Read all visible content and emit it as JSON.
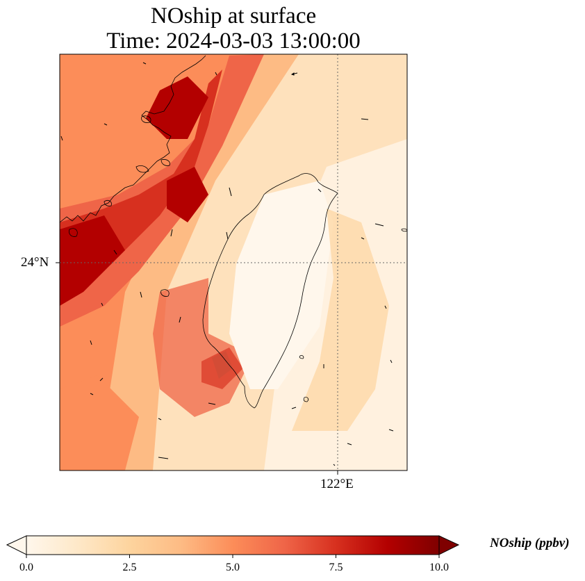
{
  "title": {
    "line1": "NOship at surface",
    "line2": "Time: 2024-03-03 13:00:00"
  },
  "map": {
    "variable": "NOship",
    "level": "surface",
    "gridlines": {
      "latitude": "24°N",
      "longitude": "122°E"
    },
    "land_outline": "coastline-taiwan-fujian",
    "overlay": "wind-vector-arrows"
  },
  "colorbar": {
    "label": "NOship (ppbv)",
    "ticks": [
      "0.0",
      "2.5",
      "5.0",
      "7.5",
      "10.0"
    ],
    "min": 0,
    "max": 10,
    "extend": "both",
    "colormap": [
      "#fff7ec",
      "#fee8c8",
      "#fdd49e",
      "#fdbb84",
      "#fc8d59",
      "#ef6548",
      "#d7301f",
      "#b30000",
      "#7f0000"
    ]
  }
}
